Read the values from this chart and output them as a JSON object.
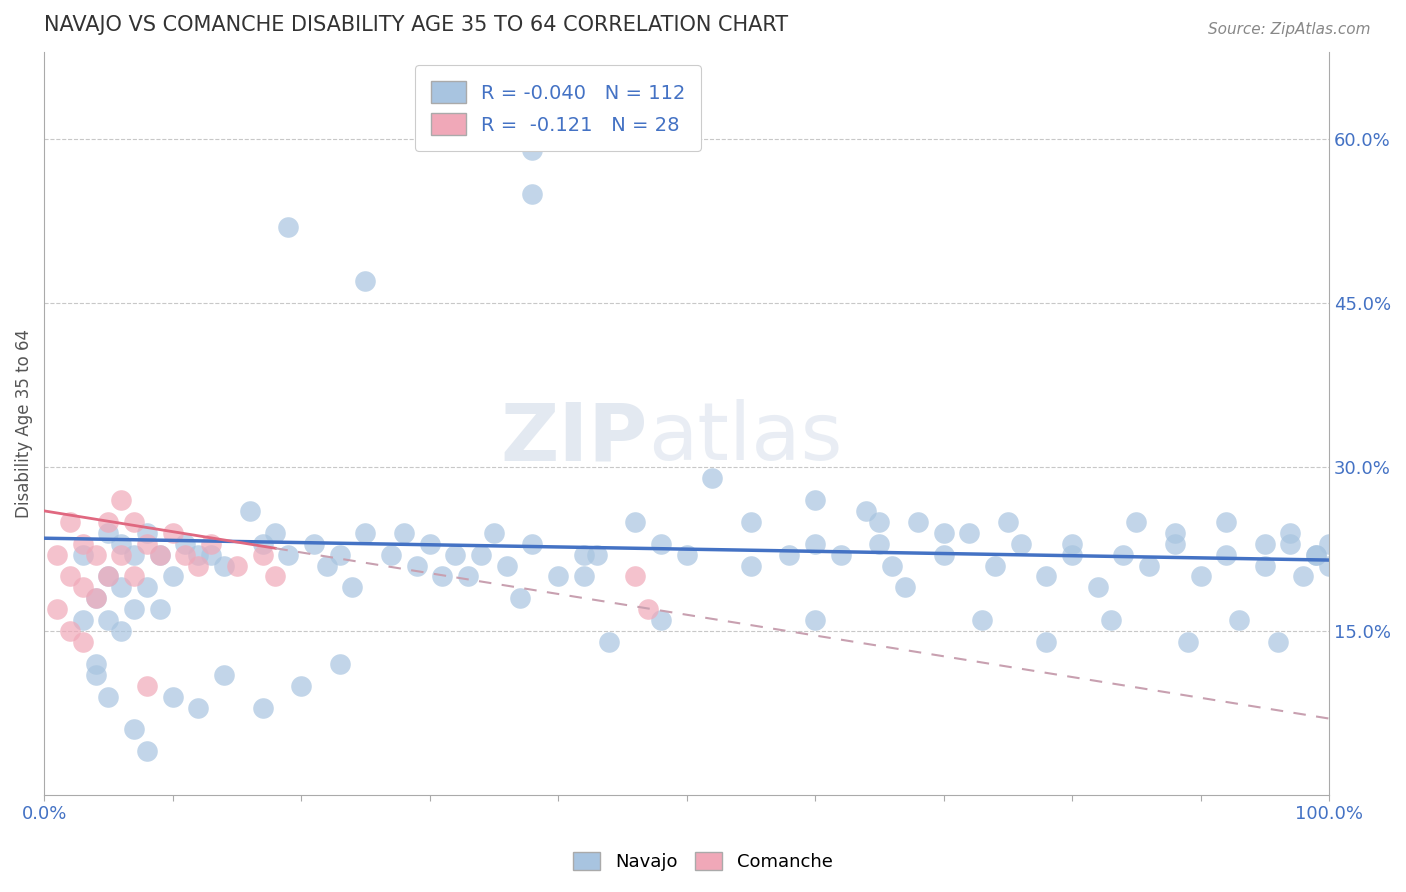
{
  "title": "NAVAJO VS COMANCHE DISABILITY AGE 35 TO 64 CORRELATION CHART",
  "source": "Source: ZipAtlas.com",
  "ylabel": "Disability Age 35 to 64",
  "xlim": [
    0.0,
    1.0
  ],
  "ylim": [
    0.0,
    0.68
  ],
  "x_ticks": [
    0.0,
    0.1,
    0.2,
    0.3,
    0.4,
    0.5,
    0.6,
    0.7,
    0.8,
    0.9,
    1.0
  ],
  "right_y_ticks": [
    0.15,
    0.3,
    0.45,
    0.6
  ],
  "right_y_tick_labels": [
    "15.0%",
    "30.0%",
    "45.0%",
    "60.0%"
  ],
  "navajo_R": -0.04,
  "navajo_N": 112,
  "comanche_R": -0.121,
  "comanche_N": 28,
  "navajo_color": "#a8c4e0",
  "comanche_color": "#f0a8b8",
  "navajo_line_color": "#4472c4",
  "comanche_line_color_solid": "#e06880",
  "comanche_line_color_dash": "#c8a0b0",
  "background_color": "#ffffff",
  "grid_color": "#c8c8c8",
  "watermark": "ZIPatlas",
  "navajo_x": [
    0.38,
    0.38,
    0.19,
    0.25,
    0.03,
    0.03,
    0.04,
    0.04,
    0.05,
    0.05,
    0.05,
    0.06,
    0.06,
    0.06,
    0.07,
    0.07,
    0.08,
    0.08,
    0.09,
    0.09,
    0.1,
    0.11,
    0.12,
    0.13,
    0.14,
    0.16,
    0.17,
    0.18,
    0.19,
    0.21,
    0.22,
    0.23,
    0.24,
    0.25,
    0.27,
    0.28,
    0.29,
    0.3,
    0.31,
    0.32,
    0.33,
    0.34,
    0.36,
    0.38,
    0.4,
    0.43,
    0.46,
    0.5,
    0.52,
    0.55,
    0.58,
    0.6,
    0.62,
    0.64,
    0.65,
    0.66,
    0.68,
    0.7,
    0.72,
    0.74,
    0.76,
    0.78,
    0.8,
    0.82,
    0.84,
    0.86,
    0.88,
    0.9,
    0.92,
    0.95,
    0.97,
    0.98,
    0.99,
    1.0,
    0.35,
    0.42,
    0.48,
    0.55,
    0.6,
    0.65,
    0.7,
    0.75,
    0.8,
    0.85,
    0.88,
    0.92,
    0.95,
    0.97,
    0.99,
    1.0,
    0.6,
    0.67,
    0.73,
    0.78,
    0.83,
    0.89,
    0.93,
    0.96,
    0.04,
    0.05,
    0.07,
    0.08,
    0.1,
    0.12,
    0.14,
    0.17,
    0.2,
    0.23,
    0.44,
    0.48,
    0.37,
    0.42
  ],
  "navajo_y": [
    0.59,
    0.55,
    0.52,
    0.47,
    0.22,
    0.16,
    0.18,
    0.12,
    0.2,
    0.16,
    0.24,
    0.19,
    0.23,
    0.15,
    0.22,
    0.17,
    0.24,
    0.19,
    0.22,
    0.17,
    0.2,
    0.23,
    0.22,
    0.22,
    0.21,
    0.26,
    0.23,
    0.24,
    0.22,
    0.23,
    0.21,
    0.22,
    0.19,
    0.24,
    0.22,
    0.24,
    0.21,
    0.23,
    0.2,
    0.22,
    0.2,
    0.22,
    0.21,
    0.23,
    0.2,
    0.22,
    0.25,
    0.22,
    0.29,
    0.21,
    0.22,
    0.27,
    0.22,
    0.26,
    0.23,
    0.21,
    0.25,
    0.22,
    0.24,
    0.21,
    0.23,
    0.2,
    0.22,
    0.19,
    0.22,
    0.21,
    0.23,
    0.2,
    0.22,
    0.21,
    0.23,
    0.2,
    0.22,
    0.21,
    0.24,
    0.22,
    0.23,
    0.25,
    0.23,
    0.25,
    0.24,
    0.25,
    0.23,
    0.25,
    0.24,
    0.25,
    0.23,
    0.24,
    0.22,
    0.23,
    0.16,
    0.19,
    0.16,
    0.14,
    0.16,
    0.14,
    0.16,
    0.14,
    0.11,
    0.09,
    0.06,
    0.04,
    0.09,
    0.08,
    0.11,
    0.08,
    0.1,
    0.12,
    0.14,
    0.16,
    0.18,
    0.2
  ],
  "comanche_x": [
    0.01,
    0.01,
    0.02,
    0.02,
    0.02,
    0.03,
    0.03,
    0.03,
    0.04,
    0.04,
    0.05,
    0.05,
    0.06,
    0.06,
    0.07,
    0.07,
    0.08,
    0.09,
    0.1,
    0.11,
    0.12,
    0.13,
    0.15,
    0.17,
    0.18,
    0.46,
    0.47,
    0.08
  ],
  "comanche_y": [
    0.22,
    0.17,
    0.25,
    0.2,
    0.15,
    0.23,
    0.19,
    0.14,
    0.22,
    0.18,
    0.25,
    0.2,
    0.27,
    0.22,
    0.25,
    0.2,
    0.23,
    0.22,
    0.24,
    0.22,
    0.21,
    0.23,
    0.21,
    0.22,
    0.2,
    0.2,
    0.17,
    0.1
  ],
  "nav_line_x0": 0.0,
  "nav_line_y0": 0.235,
  "nav_line_x1": 1.0,
  "nav_line_y1": 0.215,
  "com_line_x0": 0.0,
  "com_line_y0": 0.26,
  "com_line_x1": 1.0,
  "com_line_y1": 0.07
}
